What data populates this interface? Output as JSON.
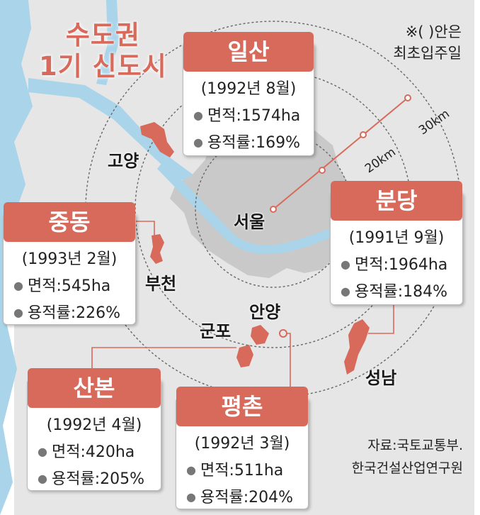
{
  "title": {
    "line1": "수도권",
    "line2": "1기 신도시"
  },
  "note": {
    "line1": "※( )안은",
    "line2": "최초입주일"
  },
  "source": {
    "line1": "자료:국토교통부.",
    "line2": "한국건설산업연구원"
  },
  "center_label": "서울",
  "ring_labels": [
    "20km",
    "30km"
  ],
  "place_labels": {
    "goyang": "고양",
    "bucheon": "부천",
    "anyang": "안양",
    "gunpo": "군포",
    "seongnam": "성남"
  },
  "field_labels": {
    "area": "면적",
    "far": "용적률"
  },
  "cities": [
    {
      "name": "일산",
      "date": "(1992년 8월)",
      "area": "1574ha",
      "far": "169%"
    },
    {
      "name": "분당",
      "date": "(1991년 9월)",
      "area": "1964ha",
      "far": "184%"
    },
    {
      "name": "중동",
      "date": "(1993년 2월)",
      "area": "545ha",
      "far": "226%"
    },
    {
      "name": "산본",
      "date": "(1992년 4월)",
      "area": "420ha",
      "far": "205%"
    },
    {
      "name": "평촌",
      "date": "(1992년 3월)",
      "area": "511ha",
      "far": "204%"
    }
  ],
  "colors": {
    "accent": "#d86a5c",
    "land": "#e6e6e6",
    "seoul": "#c9c9c9",
    "water": "#a9d4ea"
  }
}
